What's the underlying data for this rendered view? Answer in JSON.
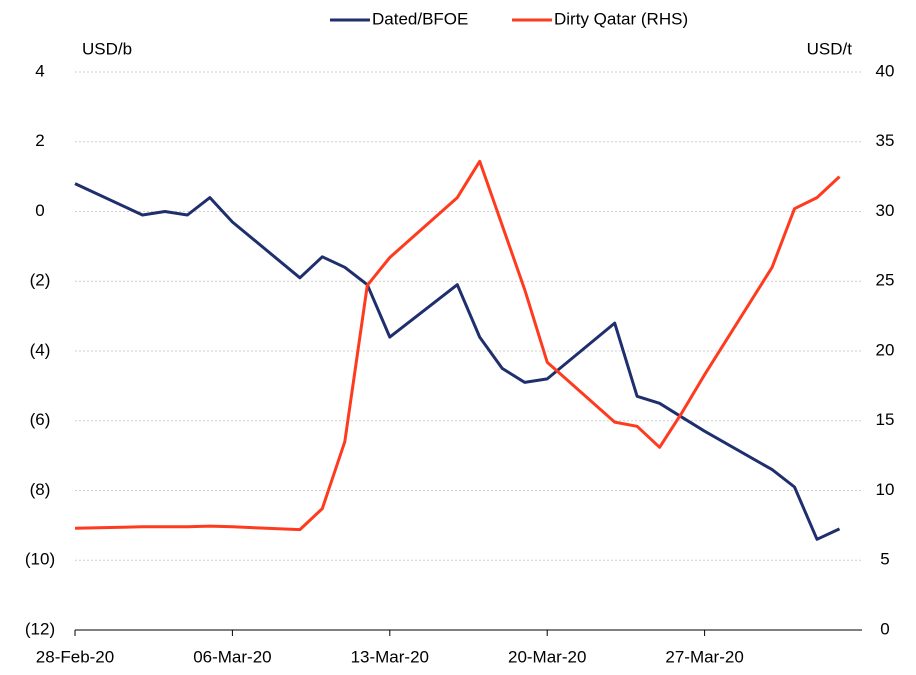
{
  "chart_data": {
    "type": "line",
    "y_label": "USD/b",
    "y2_label": "USD/t",
    "x": [
      "2020-02-28",
      "2020-03-02",
      "2020-03-03",
      "2020-03-04",
      "2020-03-05",
      "2020-03-06",
      "2020-03-09",
      "2020-03-10",
      "2020-03-11",
      "2020-03-12",
      "2020-03-13",
      "2020-03-16",
      "2020-03-17",
      "2020-03-18",
      "2020-03-19",
      "2020-03-20",
      "2020-03-23",
      "2020-03-24",
      "2020-03-25",
      "2020-03-26",
      "2020-03-27",
      "2020-03-30",
      "2020-03-31",
      "2020-04-01",
      "2020-04-02"
    ],
    "series": [
      {
        "name": "Dated/BFOE",
        "color": "#1f2f6e",
        "values": [
          0.8,
          -0.1,
          0.0,
          -0.1,
          0.4,
          -0.3,
          -1.9,
          -1.3,
          -1.6,
          -2.1,
          -3.6,
          -2.1,
          -3.6,
          -4.5,
          -4.9,
          -4.8,
          -3.2,
          -5.3,
          -5.5,
          -5.9,
          -6.3,
          -7.4,
          -7.9,
          -9.4,
          -9.1
        ]
      },
      {
        "name": "Dirty Qatar (RHS)",
        "color": "#ff3b1f",
        "axis": "y2",
        "values": [
          7.3,
          7.4,
          7.4,
          7.4,
          7.45,
          7.4,
          7.2,
          8.7,
          13.5,
          24.7,
          26.7,
          31.0,
          33.6,
          29.0,
          24.4,
          19.2,
          14.9,
          14.6,
          13.1,
          15.6,
          18.3,
          26.0,
          30.2,
          31.0,
          32.5
        ]
      }
    ],
    "xlim": [
      "2020-02-28",
      "2020-04-03"
    ],
    "xticks": [
      {
        "value": "2020-02-28",
        "label": "28-Feb-20"
      },
      {
        "value": "2020-03-06",
        "label": "06-Mar-20"
      },
      {
        "value": "2020-03-13",
        "label": "13-Mar-20"
      },
      {
        "value": "2020-03-20",
        "label": "20-Mar-20"
      },
      {
        "value": "2020-03-27",
        "label": "27-Mar-20"
      }
    ],
    "ylim": [
      -12,
      4
    ],
    "yticks": [
      {
        "value": -12,
        "label": "(12)"
      },
      {
        "value": -10,
        "label": "(10)"
      },
      {
        "value": -8,
        "label": "(8)"
      },
      {
        "value": -6,
        "label": "(6)"
      },
      {
        "value": -4,
        "label": "(4)"
      },
      {
        "value": -2,
        "label": "(2)"
      },
      0,
      2,
      4
    ],
    "y2lim": [
      0,
      40
    ],
    "y2ticks": [
      0,
      5,
      10,
      15,
      20,
      25,
      30,
      35,
      40
    ],
    "grid": true,
    "legend": "top"
  }
}
